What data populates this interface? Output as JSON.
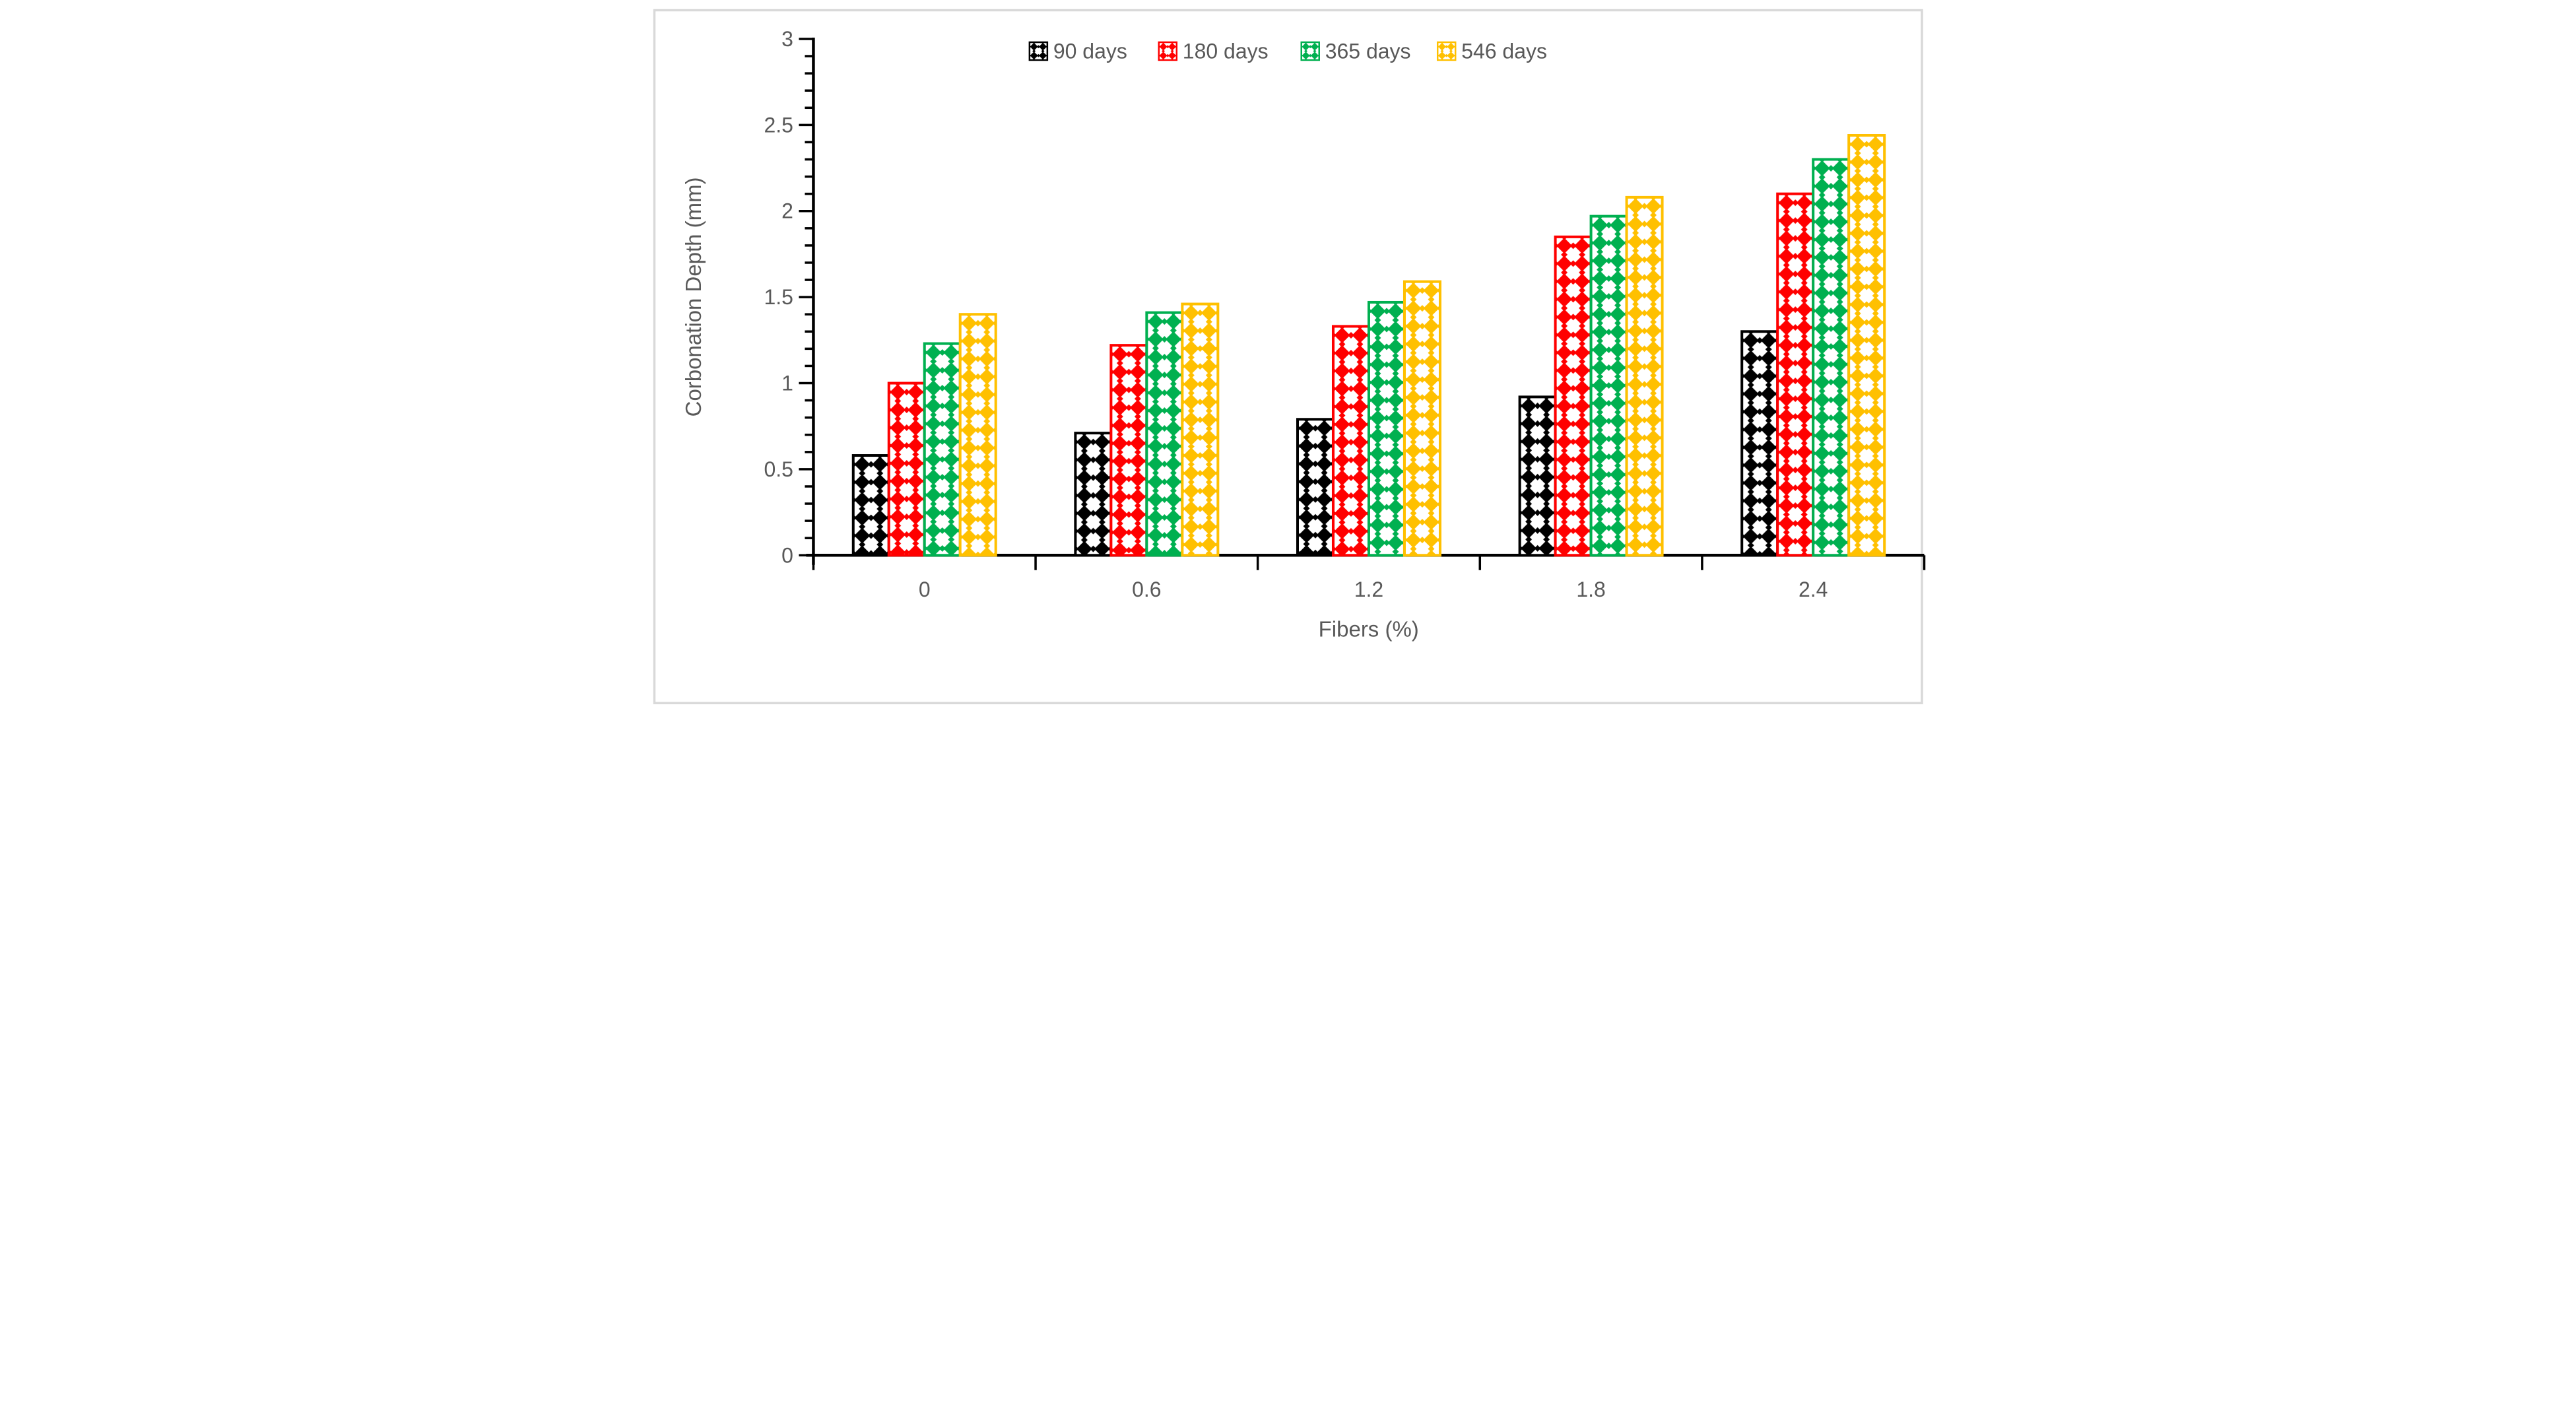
{
  "figure": {
    "background": "#ffffff",
    "border_color": "#d9d9d9"
  },
  "chart_data": {
    "type": "bar",
    "title": "",
    "xlabel": "Fibers (%)",
    "ylabel": "Corbonation Depth (mm)",
    "categories": [
      "0",
      "0.6",
      "1.2",
      "1.8",
      "2.4"
    ],
    "series": [
      {
        "name": "90 days",
        "color": "#000000",
        "values": [
          0.58,
          0.71,
          0.79,
          0.92,
          1.3
        ]
      },
      {
        "name": "180 days",
        "color": "#ff0000",
        "values": [
          1.0,
          1.22,
          1.33,
          1.85,
          2.1
        ]
      },
      {
        "name": "365 days",
        "color": "#00b050",
        "values": [
          1.23,
          1.41,
          1.47,
          1.97,
          2.3
        ]
      },
      {
        "name": "546 days",
        "color": "#ffc000",
        "values": [
          1.4,
          1.46,
          1.59,
          2.08,
          2.44
        ]
      }
    ],
    "ylim": [
      0,
      3
    ],
    "y_major_step": 0.5,
    "y_minor_step": 0.1,
    "y_tick_labels": [
      "0",
      "0.5",
      "1",
      "1.5",
      "2",
      "2.5",
      "3"
    ],
    "grid": false,
    "legend_position": "top",
    "bar_pattern": "diamond-checker",
    "text_color": "#595959",
    "axis_color": "#000000"
  }
}
